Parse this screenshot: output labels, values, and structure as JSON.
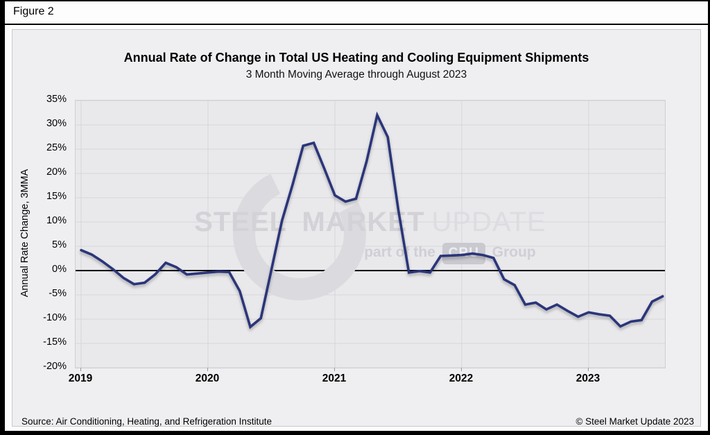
{
  "figure_label": "Figure 2",
  "title": "Annual Rate of Change in Total US Heating and Cooling Equipment Shipments",
  "subtitle": "3 Month Moving Average through August 2023",
  "y_axis_label": "Annual Rate Change, 3MMA",
  "source_note": "Source: Air Conditioning, Heating, and Refrigeration Institute",
  "copyright_note": "© Steel Market Update 2023",
  "watermark": {
    "brand_bold": "STEEL MARKET",
    "brand_light": "UPDATE",
    "tagline_prefix": "part of the",
    "tagline_box": "CRU",
    "tagline_suffix": "Group"
  },
  "colors": {
    "line": "#2b3479",
    "plot_bg": "#e9e9ec",
    "gridline": "#d6d6da",
    "zero_line": "#000000"
  },
  "chart_data": {
    "type": "line",
    "title": "Annual Rate of Change in Total US Heating and Cooling Equipment Shipments",
    "subtitle": "3 Month Moving Average through August 2023",
    "ylabel": "Annual Rate Change, 3MMA",
    "ylim": [
      -20,
      35
    ],
    "y_step": 5,
    "grid": true,
    "legend": "none",
    "y_tick_labels": [
      "35%",
      "30%",
      "25%",
      "20%",
      "15%",
      "10%",
      "5%",
      "0%",
      "-5%",
      "-10%",
      "-15%",
      "-20%"
    ],
    "x_tick_labels": [
      "2019",
      "2020",
      "2021",
      "2022",
      "2023"
    ],
    "x": [
      "2019-01",
      "2019-02",
      "2019-03",
      "2019-04",
      "2019-05",
      "2019-06",
      "2019-07",
      "2019-08",
      "2019-09",
      "2019-10",
      "2019-11",
      "2019-12",
      "2020-01",
      "2020-02",
      "2020-03",
      "2020-04",
      "2020-05",
      "2020-06",
      "2020-07",
      "2020-08",
      "2020-09",
      "2020-10",
      "2020-11",
      "2020-12",
      "2021-01",
      "2021-02",
      "2021-03",
      "2021-04",
      "2021-05",
      "2021-06",
      "2021-07",
      "2021-08",
      "2021-09",
      "2021-10",
      "2021-11",
      "2021-12",
      "2022-01",
      "2022-02",
      "2022-03",
      "2022-04",
      "2022-05",
      "2022-06",
      "2022-07",
      "2022-08",
      "2022-09",
      "2022-10",
      "2022-11",
      "2022-12",
      "2023-01",
      "2023-02",
      "2023-03",
      "2023-04",
      "2023-05",
      "2023-06",
      "2023-07",
      "2023-08"
    ],
    "values": [
      4.2,
      3.3,
      1.9,
      0.3,
      -1.5,
      -2.8,
      -2.5,
      -0.8,
      1.6,
      0.7,
      -0.8,
      -0.6,
      -0.4,
      -0.2,
      -0.3,
      -4.2,
      -11.6,
      -9.8,
      0.2,
      10.3,
      17.7,
      25.7,
      26.3,
      21.0,
      15.5,
      14.2,
      14.8,
      22.5,
      32.0,
      27.5,
      12.5,
      -0.4,
      -0.1,
      -0.4,
      3.0,
      3.1,
      3.2,
      3.5,
      3.2,
      2.6,
      -1.8,
      -3.0,
      -7.0,
      -6.6,
      -8.0,
      -7.0,
      -8.3,
      -9.5,
      -8.6,
      -9.0,
      -9.3,
      -11.5,
      -10.5,
      -10.2,
      -6.4,
      -5.3
    ]
  }
}
